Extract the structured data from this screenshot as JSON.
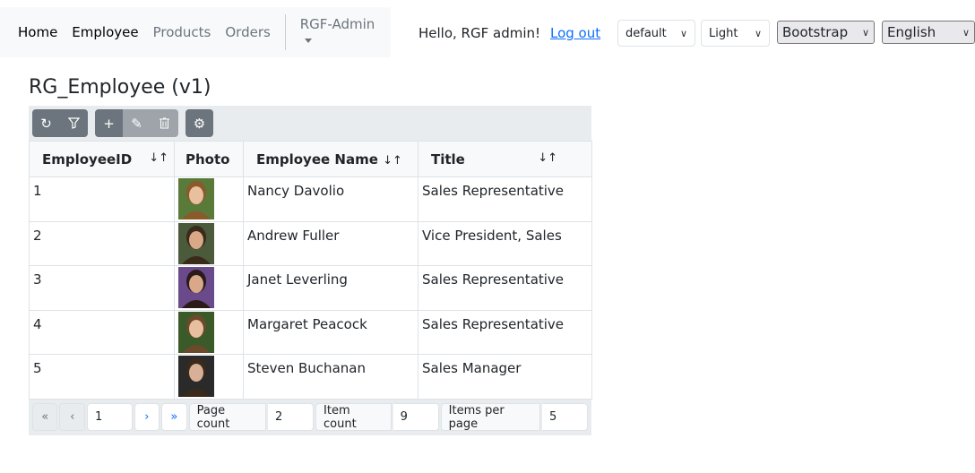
{
  "nav": {
    "items": [
      {
        "label": "Home"
      },
      {
        "label": "Employee"
      },
      {
        "label": "Products"
      },
      {
        "label": "Orders"
      }
    ],
    "admin": "RGF-Admin"
  },
  "user": {
    "greeting": "Hello, RGF admin!",
    "logout": "Log out"
  },
  "selects": {
    "size": "default",
    "mode": "Light",
    "theme": "Bootstrap",
    "language": "English"
  },
  "page_title": "RG_Employee (v1)",
  "columns": [
    "EmployeeID",
    "Photo",
    "Employee Name",
    "Title"
  ],
  "rows": [
    {
      "id": "1",
      "name": "Nancy Davolio",
      "title": "Sales Representative",
      "bg": "#5a7a3a",
      "face": "#e8c0a0",
      "hair": "#8a5a2a"
    },
    {
      "id": "2",
      "name": "Andrew Fuller",
      "title": "Vice President, Sales",
      "bg": "#4a5a3a",
      "face": "#d8a888",
      "hair": "#3a2a1a"
    },
    {
      "id": "3",
      "name": "Janet Leverling",
      "title": "Sales Representative",
      "bg": "#6a4a8a",
      "face": "#d8a888",
      "hair": "#2a1a1a"
    },
    {
      "id": "4",
      "name": "Margaret Peacock",
      "title": "Sales Representative",
      "bg": "#3a5a2a",
      "face": "#e8c0a0",
      "hair": "#6a4a2a"
    },
    {
      "id": "5",
      "name": "Steven Buchanan",
      "title": "Sales Manager",
      "bg": "#2a2a2a",
      "face": "#d8b098",
      "hair": "#3a2a1a"
    }
  ],
  "pager": {
    "page": "1",
    "page_count_label": "Page count",
    "page_count": "2",
    "item_count_label": "Item count",
    "item_count": "9",
    "per_page_label": "Items per page",
    "per_page": "5"
  }
}
